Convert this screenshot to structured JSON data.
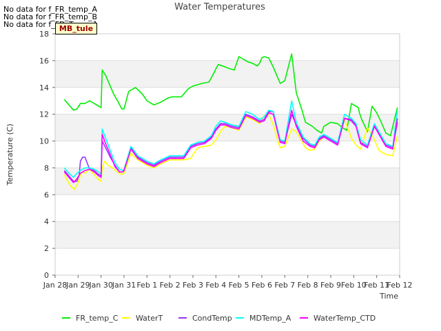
{
  "chart_data": {
    "type": "line",
    "title": "Water Temperatures",
    "xlabel": "Time",
    "ylabel": "Temperature (C)",
    "ylim": [
      0,
      18
    ],
    "yticks": [
      0,
      2,
      4,
      6,
      8,
      10,
      12,
      14,
      16,
      18
    ],
    "xlim": [
      0,
      15
    ],
    "xticks": [
      0,
      1,
      2,
      3,
      4,
      5,
      6,
      7,
      8,
      9,
      10,
      11,
      12,
      13,
      14,
      15
    ],
    "xtick_labels": [
      "Jan 28",
      "Jan 29",
      "Jan 30",
      "Jan 31",
      "Feb 1",
      "Feb 2",
      "Feb 3",
      "Feb 4",
      "Feb 5",
      "Feb 6",
      "Feb 7",
      "Feb 8",
      "Feb 9",
      "Feb 10",
      "Feb 11",
      "Feb 12"
    ],
    "grid": true,
    "legend_position": "bottom",
    "annotations": [
      "No data for f_FR_temp_A",
      "No data for f_FR_temp_B",
      "No data for f_FD_Temp_1"
    ],
    "tag_label": "MB_tule",
    "series": [
      {
        "name": "FR_temp_C",
        "color": "#00ee00",
        "x": [
          0.4,
          0.6,
          0.8,
          0.95,
          1.1,
          1.3,
          1.5,
          1.7,
          1.9,
          2.0,
          2.05,
          2.2,
          2.35,
          2.55,
          2.75,
          2.9,
          3.0,
          3.2,
          3.5,
          3.8,
          4.0,
          4.3,
          4.6,
          4.9,
          5.1,
          5.3,
          5.5,
          5.8,
          6.0,
          6.2,
          6.4,
          6.7,
          6.95,
          7.0,
          7.1,
          7.3,
          7.6,
          7.8,
          8.0,
          8.2,
          8.4,
          8.6,
          8.8,
          8.85,
          8.9,
          8.95,
          9.0,
          9.1,
          9.3,
          9.5,
          9.7,
          9.8,
          10.0,
          10.3,
          10.5,
          10.75,
          10.9,
          11.2,
          11.4,
          11.6,
          11.7,
          12.0,
          12.3,
          12.5,
          12.7,
          12.9,
          13.1,
          13.2,
          13.25,
          13.35,
          13.6,
          13.8,
          14.0,
          14.2,
          14.4,
          14.6,
          14.9
        ],
        "y": [
          13.1,
          12.7,
          12.3,
          12.4,
          12.8,
          12.8,
          13.0,
          12.8,
          12.6,
          12.5,
          15.3,
          14.9,
          14.3,
          13.5,
          12.9,
          12.4,
          12.4,
          13.7,
          14.0,
          13.5,
          13.0,
          12.7,
          12.9,
          13.2,
          13.3,
          13.3,
          13.3,
          13.9,
          14.1,
          14.2,
          14.3,
          14.4,
          15.2,
          15.4,
          15.7,
          15.6,
          15.4,
          15.3,
          16.3,
          16.1,
          15.9,
          15.8,
          15.6,
          15.7,
          15.8,
          16.0,
          16.2,
          16.3,
          16.2,
          15.5,
          14.7,
          14.3,
          14.5,
          16.5,
          13.6,
          12.3,
          11.4,
          11.1,
          10.8,
          10.6,
          11.1,
          11.4,
          11.3,
          11.0,
          10.8,
          12.8,
          12.6,
          12.5,
          12.1,
          11.6,
          10.7,
          12.6,
          12.1,
          11.4,
          10.6,
          10.4,
          12.5
        ]
      },
      {
        "name": "WaterT",
        "color": "#ffff00",
        "x": [
          0.4,
          0.55,
          0.7,
          0.85,
          1.0,
          1.15,
          1.3,
          1.5,
          1.7,
          1.9,
          2.0,
          2.05,
          2.15,
          2.3,
          2.5,
          2.7,
          2.9,
          3.0,
          3.3,
          3.6,
          4.0,
          4.3,
          4.6,
          5.0,
          5.3,
          5.6,
          5.9,
          6.2,
          6.5,
          6.8,
          7.0,
          7.2,
          7.4,
          7.7,
          8.0,
          8.3,
          8.6,
          8.9,
          9.1,
          9.3,
          9.5,
          9.7,
          9.8,
          10.0,
          10.3,
          10.5,
          10.7,
          10.9,
          11.1,
          11.3,
          11.5,
          11.7,
          12.0,
          12.3,
          12.6,
          12.9,
          13.1,
          13.3,
          13.6,
          13.9,
          14.1,
          14.4,
          14.7,
          14.9
        ],
        "y": [
          7.5,
          7.0,
          6.6,
          6.4,
          6.9,
          7.7,
          7.6,
          7.9,
          7.5,
          7.1,
          7.0,
          8.0,
          8.5,
          8.2,
          8.0,
          7.7,
          7.5,
          7.6,
          9.1,
          8.6,
          8.2,
          8.0,
          8.3,
          8.6,
          8.6,
          8.6,
          8.7,
          9.5,
          9.6,
          9.7,
          10.1,
          10.7,
          11.1,
          11.0,
          10.8,
          11.8,
          11.6,
          11.3,
          11.9,
          12.0,
          11.2,
          10.0,
          9.5,
          9.6,
          10.9,
          10.7,
          10.1,
          9.5,
          9.3,
          9.4,
          10.0,
          10.3,
          10.2,
          9.8,
          11.6,
          10.2,
          9.7,
          9.4,
          11.0,
          10.1,
          9.3,
          9.0,
          8.9,
          10.4
        ]
      },
      {
        "name": "CondTemp",
        "color": "#9933ff",
        "x": [
          0.4,
          0.6,
          0.8,
          0.95,
          1.05,
          1.1,
          1.2,
          1.3,
          1.5,
          1.7,
          1.9,
          2.0,
          2.05,
          2.2,
          2.4,
          2.6,
          2.8,
          2.95,
          3.0,
          3.3,
          3.6,
          4.0,
          4.3,
          4.6,
          5.0,
          5.3,
          5.6,
          5.9,
          6.2,
          6.5,
          6.8,
          7.0,
          7.2,
          7.4,
          7.7,
          8.0,
          8.3,
          8.6,
          8.9,
          9.1,
          9.3,
          9.5,
          9.7,
          9.8,
          10.0,
          10.3,
          10.5,
          10.8,
          11.1,
          11.3,
          11.5,
          11.7,
          12.0,
          12.3,
          12.6,
          12.9,
          13.1,
          13.3,
          13.6,
          13.9,
          14.1,
          14.4,
          14.7,
          14.9
        ],
        "y": [
          7.8,
          7.4,
          7.0,
          7.0,
          7.5,
          8.5,
          8.8,
          8.8,
          7.9,
          7.8,
          7.5,
          7.4,
          10.0,
          9.5,
          8.8,
          8.2,
          7.7,
          7.7,
          7.8,
          9.5,
          8.8,
          8.4,
          8.2,
          8.5,
          8.8,
          8.8,
          8.8,
          9.6,
          9.8,
          9.9,
          10.3,
          10.9,
          11.3,
          11.3,
          11.1,
          11.0,
          12.0,
          11.8,
          11.5,
          11.6,
          12.2,
          12.2,
          10.7,
          10.0,
          9.9,
          12.0,
          11.2,
          10.2,
          9.7,
          9.6,
          10.2,
          10.4,
          10.1,
          9.8,
          11.7,
          11.6,
          11.2,
          9.9,
          9.6,
          11.2,
          10.6,
          9.7,
          9.5,
          11.4
        ]
      },
      {
        "name": "MDTemp_A",
        "color": "#00ffff",
        "x": [
          0.4,
          0.6,
          0.8,
          0.95,
          1.1,
          1.3,
          1.5,
          1.7,
          1.9,
          2.0,
          2.05,
          2.2,
          2.4,
          2.6,
          2.8,
          2.95,
          3.0,
          3.3,
          3.6,
          4.0,
          4.3,
          4.6,
          5.0,
          5.3,
          5.6,
          5.9,
          6.2,
          6.5,
          6.8,
          7.0,
          7.2,
          7.4,
          7.7,
          8.0,
          8.3,
          8.6,
          8.9,
          9.1,
          9.3,
          9.5,
          9.7,
          9.8,
          10.0,
          10.3,
          10.5,
          10.8,
          11.1,
          11.3,
          11.5,
          11.7,
          12.0,
          12.3,
          12.6,
          12.9,
          13.1,
          13.3,
          13.6,
          13.9,
          14.1,
          14.4,
          14.7,
          14.9
        ],
        "y": [
          8.0,
          7.6,
          7.3,
          7.6,
          7.8,
          8.0,
          8.0,
          7.9,
          7.7,
          7.5,
          10.9,
          10.2,
          9.3,
          8.4,
          7.9,
          7.8,
          7.9,
          9.6,
          8.9,
          8.5,
          8.3,
          8.6,
          8.9,
          8.9,
          8.9,
          9.7,
          9.9,
          10.0,
          10.4,
          11.1,
          11.5,
          11.4,
          11.2,
          11.1,
          12.2,
          12.0,
          11.6,
          11.8,
          12.3,
          12.2,
          10.8,
          10.1,
          10.0,
          13.0,
          11.4,
          10.3,
          9.8,
          9.7,
          10.3,
          10.5,
          10.2,
          9.9,
          12.0,
          11.7,
          11.3,
          10.1,
          9.7,
          11.3,
          10.7,
          9.8,
          9.6,
          12.3
        ]
      },
      {
        "name": "WaterTemp_CTD",
        "color": "#ff00ff",
        "x": [
          0.4,
          0.6,
          0.8,
          0.95,
          1.1,
          1.3,
          1.5,
          1.7,
          1.9,
          2.0,
          2.05,
          2.2,
          2.4,
          2.6,
          2.8,
          2.95,
          3.0,
          3.3,
          3.6,
          4.0,
          4.3,
          4.6,
          5.0,
          5.3,
          5.6,
          5.9,
          6.2,
          6.5,
          6.8,
          7.0,
          7.2,
          7.4,
          7.7,
          8.0,
          8.3,
          8.6,
          8.9,
          9.1,
          9.3,
          9.5,
          9.7,
          9.8,
          10.0,
          10.3,
          10.5,
          10.8,
          11.1,
          11.3,
          11.5,
          11.7,
          12.0,
          12.3,
          12.6,
          12.9,
          13.1,
          13.3,
          13.6,
          13.9,
          14.1,
          14.4,
          14.7,
          14.9
        ],
        "y": [
          7.7,
          7.3,
          6.9,
          7.2,
          7.6,
          7.8,
          7.9,
          7.7,
          7.4,
          7.3,
          10.5,
          9.8,
          9.0,
          8.1,
          7.7,
          7.7,
          7.8,
          9.4,
          8.7,
          8.3,
          8.1,
          8.4,
          8.7,
          8.7,
          8.7,
          9.5,
          9.7,
          9.8,
          10.2,
          10.8,
          11.2,
          11.2,
          11.0,
          10.9,
          11.9,
          11.7,
          11.4,
          11.5,
          12.1,
          12.0,
          10.6,
          9.9,
          9.8,
          12.3,
          11.1,
          10.0,
          9.6,
          9.5,
          10.1,
          10.3,
          10.0,
          9.7,
          11.7,
          11.5,
          11.1,
          9.8,
          9.5,
          11.1,
          10.5,
          9.6,
          9.4,
          11.7
        ]
      }
    ]
  }
}
